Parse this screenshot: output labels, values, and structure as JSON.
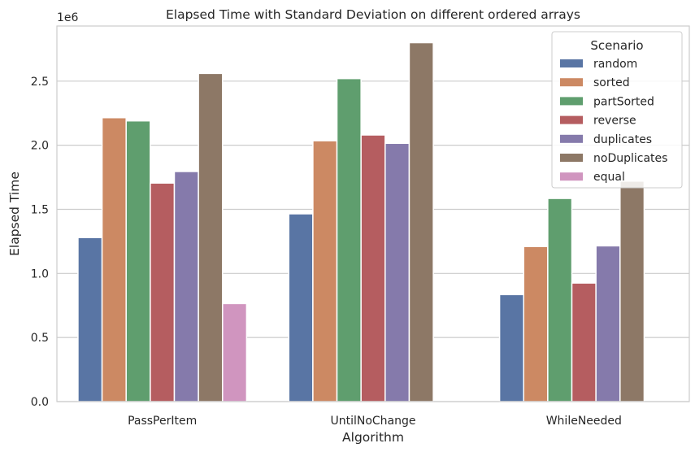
{
  "chart_data": {
    "type": "bar",
    "title": "Elapsed Time with Standard Deviation on different ordered arrays",
    "xlabel": "Algorithm",
    "ylabel": "Elapsed Time",
    "y_scale_label": "1e6",
    "y_multiplier": 1000000,
    "ylim": [
      0,
      2.93
    ],
    "yticks": [
      0.0,
      0.5,
      1.0,
      1.5,
      2.0,
      2.5
    ],
    "ytick_labels": [
      "0.0",
      "0.5",
      "1.0",
      "1.5",
      "2.0",
      "2.5"
    ],
    "grid": "horizontal",
    "categories": [
      "PassPerItem",
      "UntilNoChange",
      "WhileNeeded"
    ],
    "legend": {
      "title": "Scenario",
      "position": "top-right"
    },
    "series": [
      {
        "name": "random",
        "color": "#5975a4",
        "values": [
          1.28,
          1.465,
          0.835
        ]
      },
      {
        "name": "sorted",
        "color": "#cc8963",
        "values": [
          2.215,
          2.035,
          1.21
        ]
      },
      {
        "name": "partSorted",
        "color": "#5f9e6e",
        "values": [
          2.19,
          2.52,
          1.585
        ]
      },
      {
        "name": "reverse",
        "color": "#b55d60",
        "values": [
          1.705,
          2.08,
          0.925
        ]
      },
      {
        "name": "duplicates",
        "color": "#857aab",
        "values": [
          1.795,
          2.015,
          1.215
        ]
      },
      {
        "name": "noDuplicates",
        "color": "#8d7866",
        "values": [
          2.56,
          2.8,
          1.72
        ]
      },
      {
        "name": "equal",
        "color": "#d095bf",
        "values": [
          0.765,
          null,
          null
        ]
      }
    ]
  }
}
